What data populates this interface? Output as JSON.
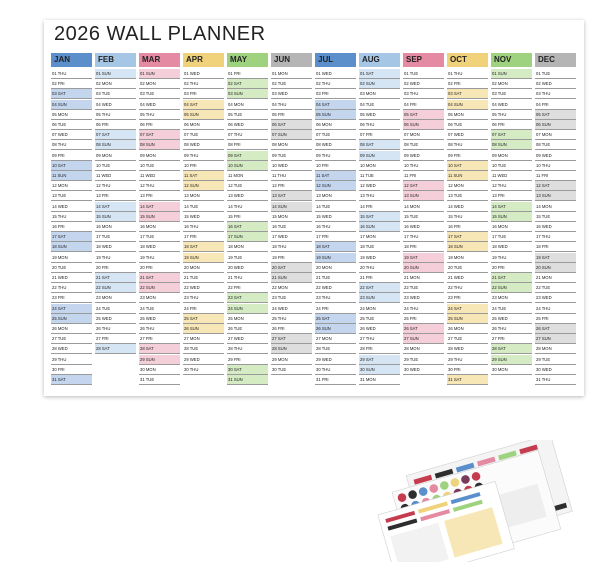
{
  "title": "2026 WALL PLANNER",
  "months": [
    {
      "name": "JAN",
      "color": "#5b8fcc",
      "tint": "#c4d6ee",
      "first_dow": 3,
      "days": 31
    },
    {
      "name": "FEB",
      "color": "#a6c6e6",
      "tint": "#d6e5f4",
      "first_dow": 6,
      "days": 28
    },
    {
      "name": "MAR",
      "color": "#e48aa2",
      "tint": "#f4cfd9",
      "first_dow": 6,
      "days": 31
    },
    {
      "name": "APR",
      "color": "#f0d27a",
      "tint": "#f8e7b6",
      "first_dow": 2,
      "days": 30
    },
    {
      "name": "MAY",
      "color": "#9fd27f",
      "tint": "#d4ebc4",
      "first_dow": 4,
      "days": 31
    },
    {
      "name": "JUN",
      "color": "#b5b5b5",
      "tint": "#dedede",
      "first_dow": 0,
      "days": 30
    },
    {
      "name": "JUL",
      "color": "#5b8fcc",
      "tint": "#c4d6ee",
      "first_dow": 2,
      "days": 31
    },
    {
      "name": "AUG",
      "color": "#a6c6e6",
      "tint": "#d6e5f4",
      "first_dow": 5,
      "days": 31
    },
    {
      "name": "SEP",
      "color": "#e48aa2",
      "tint": "#f4cfd9",
      "first_dow": 1,
      "days": 30
    },
    {
      "name": "OCT",
      "color": "#f0d27a",
      "tint": "#f8e7b6",
      "first_dow": 3,
      "days": 31
    },
    {
      "name": "NOV",
      "color": "#9fd27f",
      "tint": "#d4ebc4",
      "first_dow": 6,
      "days": 30
    },
    {
      "name": "DEC",
      "color": "#b5b5b5",
      "tint": "#dedede",
      "first_dow": 1,
      "days": 31
    }
  ],
  "weekdays": [
    "MON",
    "TUE",
    "WED",
    "THU",
    "FRI",
    "SAT",
    "SUN"
  ]
}
